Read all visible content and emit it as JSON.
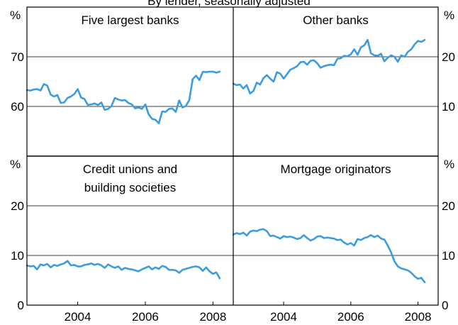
{
  "subtitle": "By lender, seasonally adjusted",
  "chart_data": [
    {
      "type": "line",
      "title": "Five largest banks",
      "unit": "%",
      "ylim": [
        50,
        80
      ],
      "yticks": [
        "60",
        "70"
      ],
      "y_label_side": "left",
      "x_labels": [],
      "series": [
        {
          "color": "#3d9be0",
          "x": [
            2002.5,
            2002.6,
            2002.7,
            2002.8,
            2002.9,
            2003.0,
            2003.1,
            2003.2,
            2003.3,
            2003.4,
            2003.5,
            2003.6,
            2003.7,
            2003.8,
            2003.9,
            2004.0,
            2004.1,
            2004.2,
            2004.3,
            2004.4,
            2004.5,
            2004.6,
            2004.7,
            2004.8,
            2004.9,
            2005.0,
            2005.1,
            2005.2,
            2005.3,
            2005.4,
            2005.5,
            2005.6,
            2005.7,
            2005.8,
            2005.9,
            2006.0,
            2006.1,
            2006.2,
            2006.3,
            2006.4,
            2006.5,
            2006.6,
            2006.7,
            2006.8,
            2006.9,
            2007.0,
            2007.1,
            2007.2,
            2007.3,
            2007.4,
            2007.5,
            2007.6,
            2007.7,
            2007.8,
            2007.9,
            2008.0,
            2008.1,
            2008.2
          ],
          "y": [
            63.3,
            63.2,
            63.4,
            63.5,
            63.2,
            64.5,
            64.2,
            62.4,
            62.0,
            62.3,
            60.7,
            60.8,
            61.7,
            62.0,
            62.5,
            63.5,
            61.8,
            61.5,
            60.3,
            60.4,
            60.6,
            60.3,
            60.8,
            59.3,
            59.5,
            60.1,
            61.7,
            61.4,
            61.2,
            61.3,
            60.7,
            60.4,
            59.6,
            59.8,
            59.5,
            60.4,
            58.4,
            57.5,
            57.3,
            56.6,
            59.0,
            58.9,
            59.5,
            59.6,
            58.9,
            61.2,
            59.8,
            60.1,
            61.3,
            65.5,
            66.2,
            65.3,
            67.0,
            66.9,
            67.0,
            67.0,
            66.8,
            67.0
          ]
        }
      ]
    },
    {
      "type": "line",
      "title": "Other banks",
      "unit": "%",
      "ylim": [
        0,
        30
      ],
      "yticks": [
        "10",
        "20"
      ],
      "y_label_side": "right",
      "x_labels": [],
      "series": [
        {
          "color": "#3d9be0",
          "x": [
            2002.5,
            2002.6,
            2002.7,
            2002.8,
            2002.9,
            2003.0,
            2003.1,
            2003.2,
            2003.3,
            2003.4,
            2003.5,
            2003.6,
            2003.7,
            2003.8,
            2003.9,
            2004.0,
            2004.1,
            2004.2,
            2004.3,
            2004.4,
            2004.5,
            2004.6,
            2004.7,
            2004.8,
            2004.9,
            2005.0,
            2005.1,
            2005.2,
            2005.3,
            2005.4,
            2005.5,
            2005.6,
            2005.7,
            2005.8,
            2005.9,
            2006.0,
            2006.1,
            2006.2,
            2006.3,
            2006.4,
            2006.5,
            2006.6,
            2006.7,
            2006.8,
            2006.9,
            2007.0,
            2007.1,
            2007.2,
            2007.3,
            2007.4,
            2007.5,
            2007.6,
            2007.7,
            2007.8,
            2007.9,
            2008.0,
            2008.1,
            2008.2
          ],
          "y": [
            14.6,
            14.3,
            14.4,
            13.6,
            14.3,
            12.6,
            13.1,
            14.8,
            14.4,
            15.7,
            16.3,
            15.6,
            15.0,
            16.9,
            16.6,
            15.6,
            16.5,
            17.4,
            17.7,
            18.1,
            18.9,
            19.0,
            18.4,
            19.2,
            19.3,
            18.7,
            17.8,
            18.1,
            18.3,
            18.4,
            18.3,
            19.6,
            19.7,
            20.2,
            20.1,
            20.5,
            21.5,
            20.4,
            21.9,
            22.3,
            23.4,
            20.7,
            20.3,
            20.2,
            20.6,
            19.1,
            19.8,
            20.3,
            20.0,
            19.0,
            20.3,
            20.0,
            21.0,
            21.5,
            22.5,
            23.2,
            23.0,
            23.4
          ]
        }
      ]
    },
    {
      "type": "line",
      "title": "Credit unions and building societies",
      "title_lines": [
        "Credit unions and",
        "building societies"
      ],
      "unit": "%",
      "ylim": [
        0,
        30
      ],
      "yticks": [
        "0",
        "10",
        "20"
      ],
      "y_label_side": "left",
      "x_labels": [
        "2004",
        "2006",
        "2008"
      ],
      "series": [
        {
          "color": "#3d9be0",
          "x": [
            2002.5,
            2002.6,
            2002.7,
            2002.8,
            2002.9,
            2003.0,
            2003.1,
            2003.2,
            2003.3,
            2003.4,
            2003.5,
            2003.6,
            2003.7,
            2003.8,
            2003.9,
            2004.0,
            2004.1,
            2004.2,
            2004.3,
            2004.4,
            2004.5,
            2004.6,
            2004.7,
            2004.8,
            2004.9,
            2005.0,
            2005.1,
            2005.2,
            2005.3,
            2005.4,
            2005.5,
            2005.6,
            2005.7,
            2005.8,
            2005.9,
            2006.0,
            2006.1,
            2006.2,
            2006.3,
            2006.4,
            2006.5,
            2006.6,
            2006.7,
            2006.8,
            2006.9,
            2007.0,
            2007.1,
            2007.2,
            2007.3,
            2007.4,
            2007.5,
            2007.6,
            2007.7,
            2007.8,
            2007.9,
            2008.0,
            2008.1,
            2008.2
          ],
          "y": [
            8.0,
            7.8,
            7.9,
            7.2,
            8.2,
            8.0,
            8.3,
            7.6,
            8.1,
            7.9,
            8.2,
            8.4,
            8.9,
            8.0,
            8.1,
            7.8,
            7.8,
            8.1,
            8.2,
            8.4,
            8.1,
            8.3,
            8.0,
            7.5,
            8.2,
            7.8,
            7.5,
            7.8,
            7.1,
            7.5,
            7.3,
            7.2,
            7.0,
            6.8,
            7.2,
            7.5,
            7.8,
            7.2,
            7.6,
            7.3,
            7.9,
            7.7,
            7.1,
            7.1,
            7.0,
            6.5,
            7.1,
            7.3,
            7.5,
            7.7,
            7.8,
            7.6,
            6.9,
            7.6,
            6.8,
            6.3,
            6.6,
            5.4
          ]
        }
      ]
    },
    {
      "type": "line",
      "title": "Mortgage originators",
      "unit": "%",
      "ylim": [
        0,
        30
      ],
      "yticks": [
        "0",
        "10",
        "20"
      ],
      "y_label_side": "right",
      "x_labels": [
        "2004",
        "2006",
        "2008"
      ],
      "series": [
        {
          "color": "#3d9be0",
          "x": [
            2002.5,
            2002.6,
            2002.7,
            2002.8,
            2002.9,
            2003.0,
            2003.1,
            2003.2,
            2003.3,
            2003.4,
            2003.5,
            2003.6,
            2003.7,
            2003.8,
            2003.9,
            2004.0,
            2004.1,
            2004.2,
            2004.3,
            2004.4,
            2004.5,
            2004.6,
            2004.7,
            2004.8,
            2004.9,
            2005.0,
            2005.1,
            2005.2,
            2005.3,
            2005.4,
            2005.5,
            2005.6,
            2005.7,
            2005.8,
            2005.9,
            2006.0,
            2006.1,
            2006.2,
            2006.3,
            2006.4,
            2006.5,
            2006.6,
            2006.7,
            2006.8,
            2006.9,
            2007.0,
            2007.1,
            2007.2,
            2007.3,
            2007.4,
            2007.5,
            2007.6,
            2007.7,
            2007.8,
            2007.9,
            2008.0,
            2008.1,
            2008.2
          ],
          "y": [
            14.2,
            14.5,
            14.3,
            14.6,
            14.0,
            14.8,
            15.0,
            14.9,
            15.2,
            15.3,
            14.9,
            13.9,
            14.0,
            13.7,
            13.4,
            13.9,
            13.7,
            13.8,
            13.6,
            13.3,
            13.5,
            14.1,
            13.5,
            13.0,
            13.3,
            13.8,
            13.9,
            13.5,
            13.6,
            13.5,
            13.4,
            13.1,
            13.2,
            12.6,
            12.2,
            12.5,
            12.0,
            13.3,
            13.1,
            13.5,
            13.7,
            14.1,
            13.7,
            14.0,
            13.4,
            13.2,
            12.0,
            10.6,
            8.8,
            7.8,
            7.4,
            7.2,
            7.0,
            6.5,
            5.8,
            5.3,
            5.5,
            4.6
          ]
        }
      ]
    }
  ]
}
